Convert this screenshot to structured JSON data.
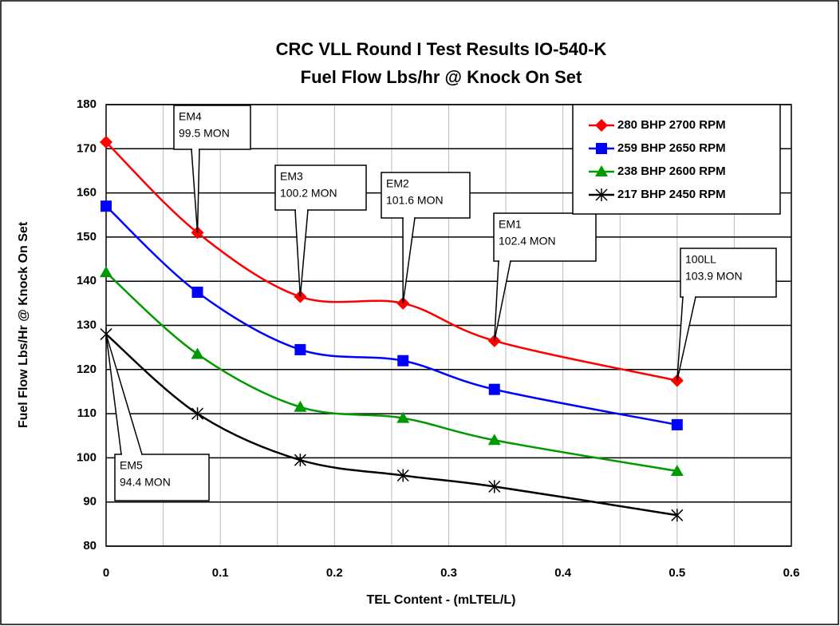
{
  "chart_data": {
    "type": "line",
    "title": [
      "CRC VLL Round I Test Results IO-540-K",
      "Fuel Flow Lbs/hr @ Knock On Set"
    ],
    "x_label": "TEL Content - (mLTEL/L)",
    "y_label": "Fuel Flow Lbs/Hr @ Knock On Set",
    "x": [
      0,
      0.08,
      0.17,
      0.26,
      0.34,
      0.5
    ],
    "series": [
      {
        "name": "280 BHP 2700 RPM",
        "color": "#ff0000",
        "marker": "diamond",
        "values": [
          171.5,
          151,
          136.5,
          135,
          126.5,
          117.5
        ]
      },
      {
        "name": "259 BHP 2650 RPM",
        "color": "#0000ff",
        "marker": "square",
        "values": [
          157,
          137.5,
          124.5,
          122,
          115.5,
          107.5
        ]
      },
      {
        "name": "238 BHP 2600 RPM",
        "color": "#009900",
        "marker": "triangle",
        "values": [
          142,
          123.5,
          111.5,
          109,
          104,
          97
        ]
      },
      {
        "name": "217 BHP 2450 RPM",
        "color": "#000000",
        "marker": "asterisk",
        "values": [
          128,
          110,
          99.5,
          96,
          93.5,
          87
        ]
      }
    ],
    "xlim": [
      0,
      0.6
    ],
    "xticks": [
      0,
      0.1,
      0.2,
      0.3,
      0.4,
      0.5,
      0.6
    ],
    "ylim": [
      80,
      180
    ],
    "yticks": [
      80,
      90,
      100,
      110,
      120,
      130,
      140,
      150,
      160,
      170,
      180
    ],
    "grid": true,
    "legend": "upper right",
    "annotations": [
      {
        "lines": [
          "EM4",
          "99.5 MON"
        ]
      },
      {
        "lines": [
          "EM3",
          "100.2  MON"
        ]
      },
      {
        "lines": [
          "EM2",
          "101.6  MON"
        ]
      },
      {
        "lines": [
          "EM1",
          "102.4  MON"
        ]
      },
      {
        "lines": [
          "100LL",
          "103.9  MON"
        ]
      },
      {
        "lines": [
          "EM5",
          "94.4 MON"
        ]
      }
    ]
  }
}
